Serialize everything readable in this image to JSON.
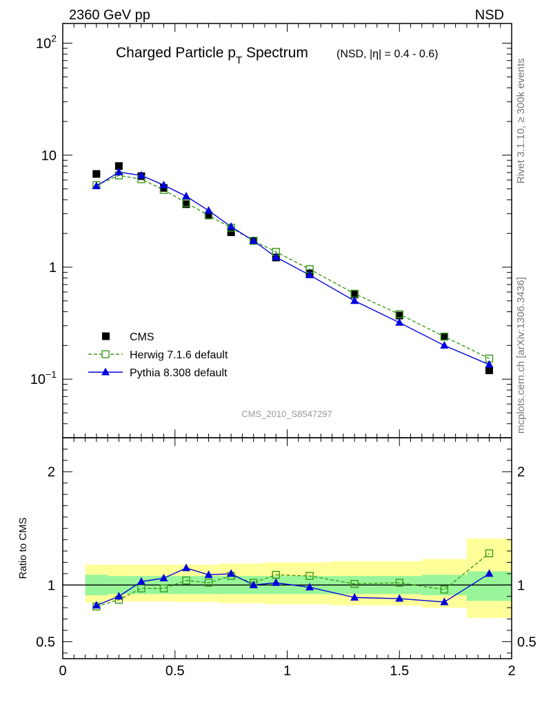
{
  "header": {
    "left": "2360 GeV pp",
    "right": "NSD"
  },
  "title": {
    "main_pre": "Charged Particle p",
    "main_sub": "T",
    "main_post": " Spectrum",
    "small": "(NSD, |η| = 0.4 - 0.6)"
  },
  "side": {
    "rivet": "Rivet 3.1.10, ≥ 300k events",
    "mcplots": "mcplots.cern.ch [arXiv:1306.3436]"
  },
  "watermark": "CMS_2010_S8547297",
  "colors": {
    "cms": "#000000",
    "herwig": "#3a9a1a",
    "pythia": "#0000dd",
    "band_inner": "#99f599",
    "band_outer": "#ffff99"
  },
  "chart_data": [
    {
      "type": "scatter",
      "panel": "main",
      "yscale": "log",
      "xlim": [
        0,
        2
      ],
      "ylim": [
        0.03,
        150
      ],
      "y_tick_labels": [
        "10^-1",
        "1",
        "10",
        "10^2"
      ],
      "x": [
        0.15,
        0.25,
        0.35,
        0.45,
        0.55,
        0.65,
        0.75,
        0.85,
        0.95,
        1.1,
        1.3,
        1.5,
        1.7,
        1.9
      ],
      "legend": {
        "position": "bottom-left",
        "entries": [
          "CMS",
          "Herwig 7.1.6 default",
          "Pythia 8.308 default"
        ]
      },
      "series": [
        {
          "name": "CMS",
          "values": [
            6.8,
            8.0,
            6.5,
            5.1,
            3.65,
            2.9,
            2.05,
            1.72,
            1.22,
            0.88,
            0.57,
            0.37,
            0.24,
            0.12
          ]
        },
        {
          "name": "Herwig 7.1.6 default",
          "values": [
            5.4,
            6.6,
            6.1,
            4.9,
            3.75,
            2.9,
            2.25,
            1.72,
            1.37,
            0.96,
            0.58,
            0.38,
            0.24,
            0.153
          ]
        },
        {
          "name": "Pythia 8.308 default",
          "values": [
            5.3,
            7.05,
            6.6,
            5.4,
            4.3,
            3.2,
            2.3,
            1.72,
            1.23,
            0.85,
            0.5,
            0.32,
            0.2,
            0.135
          ]
        }
      ]
    },
    {
      "type": "line",
      "panel": "ratio",
      "ylabel": "Ratio to CMS",
      "xlim": [
        0,
        2
      ],
      "ylim": [
        0.35,
        2.3
      ],
      "x_tick_labels": [
        "0",
        "0.5",
        "1",
        "1.5",
        "2"
      ],
      "y_tick_labels": [
        "0.5",
        "1",
        "2"
      ],
      "x": [
        0.15,
        0.25,
        0.35,
        0.45,
        0.55,
        0.65,
        0.75,
        0.85,
        0.95,
        1.1,
        1.3,
        1.5,
        1.7,
        1.9
      ],
      "series": [
        {
          "name": "Herwig 7.1.6 default",
          "values": [
            0.81,
            0.87,
            0.97,
            0.97,
            1.04,
            1.02,
            1.08,
            1.02,
            1.09,
            1.08,
            1.01,
            1.02,
            0.96,
            1.28
          ]
        },
        {
          "name": "Pythia 8.308 default",
          "values": [
            0.82,
            0.9,
            1.03,
            1.06,
            1.15,
            1.09,
            1.1,
            1.0,
            1.02,
            0.98,
            0.89,
            0.88,
            0.85,
            1.1
          ]
        }
      ],
      "band_bins": [
        {
          "x0": 0.1,
          "x1": 0.2,
          "inner": [
            0.91,
            1.09
          ],
          "outer": [
            0.845,
            1.18
          ]
        },
        {
          "x0": 0.2,
          "x1": 0.3,
          "inner": [
            0.92,
            1.08
          ],
          "outer": [
            0.855,
            1.18
          ]
        },
        {
          "x0": 0.3,
          "x1": 0.5,
          "inner": [
            0.92,
            1.08
          ],
          "outer": [
            0.855,
            1.18
          ]
        },
        {
          "x0": 0.5,
          "x1": 0.7,
          "inner": [
            0.92,
            1.08
          ],
          "outer": [
            0.85,
            1.18
          ]
        },
        {
          "x0": 0.7,
          "x1": 0.9,
          "inner": [
            0.92,
            1.08
          ],
          "outer": [
            0.84,
            1.19
          ]
        },
        {
          "x0": 0.9,
          "x1": 1.2,
          "inner": [
            0.92,
            1.08
          ],
          "outer": [
            0.83,
            1.2
          ]
        },
        {
          "x0": 1.2,
          "x1": 1.6,
          "inner": [
            0.92,
            1.08
          ],
          "outer": [
            0.82,
            1.21
          ]
        },
        {
          "x0": 1.6,
          "x1": 1.8,
          "inner": [
            0.91,
            1.09
          ],
          "outer": [
            0.8,
            1.23
          ]
        },
        {
          "x0": 1.8,
          "x1": 2.0,
          "inner": [
            0.86,
            1.12
          ],
          "outer": [
            0.71,
            1.41
          ]
        }
      ]
    }
  ]
}
